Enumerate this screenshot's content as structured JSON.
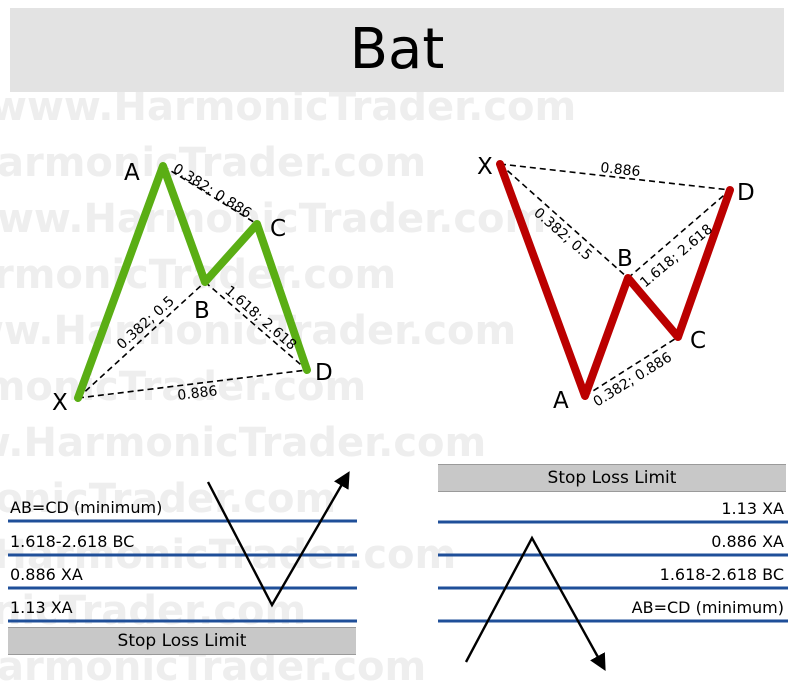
{
  "title": "Bat",
  "watermark": "www.HarmonicTrader.com",
  "colors": {
    "bullish": "#5aae14",
    "bearish": "#bb0000",
    "level_line": "#1f4f99",
    "title_bg": "#e3e3e3",
    "stop_bg": "#c8c8c8"
  },
  "bullish": {
    "points": {
      "X": "X",
      "A": "A",
      "B": "B",
      "C": "C",
      "D": "D"
    },
    "ratios": {
      "xb": "0.382; 0.5",
      "ac": "0.382; 0.886",
      "bd": "1.618; 2.618",
      "xd": "0.886"
    }
  },
  "bearish": {
    "points": {
      "X": "X",
      "A": "A",
      "B": "B",
      "C": "C",
      "D": "D"
    },
    "ratios": {
      "xb": "0.382; 0.5",
      "ac": "0.382; 0.886",
      "bd": "1.618; 2.618",
      "xd": "0.886"
    }
  },
  "levels_left": {
    "items": [
      "AB=CD (minimum)",
      "1.618-2.618 BC",
      "0.886 XA",
      "1.13 XA"
    ],
    "stop_loss": "Stop Loss Limit"
  },
  "levels_right": {
    "stop_loss": "Stop Loss Limit",
    "items": [
      "1.13 XA",
      "0.886 XA",
      "1.618-2.618 BC",
      "AB=CD (minimum)"
    ]
  }
}
